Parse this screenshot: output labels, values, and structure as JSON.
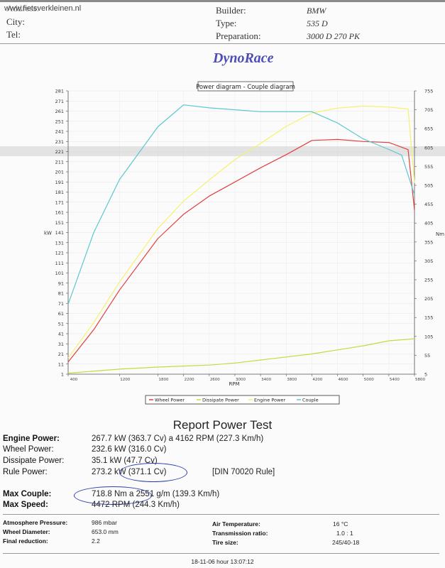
{
  "header": {
    "website": "www.fietsverkleinen.nl",
    "address_label": "Address:",
    "city_label": "City:",
    "tel_label": "Tel:",
    "builder_label": "Builder:",
    "builder_value": "BMW",
    "type_label": "Type:",
    "type_value": "535 D",
    "prep_label": "Preparation:",
    "prep_value": "3000 D 270 PK"
  },
  "brand_title": "DynoRace",
  "chart_data": {
    "type": "line",
    "title": "Power diagram - Couple diagram",
    "xlabel": "RPM",
    "ylabel_left": "kW",
    "ylabel_right": "Nm",
    "x_ticks": [
      "400",
      "1200",
      "1800",
      "2200",
      "2600",
      "3000",
      "3400",
      "3800",
      "4200",
      "4600",
      "5000",
      "5400",
      "5800"
    ],
    "y_left_ticks": [
      1,
      11,
      21,
      31,
      41,
      51,
      61,
      71,
      81,
      91,
      101,
      111,
      121,
      131,
      141,
      151,
      161,
      171,
      181,
      191,
      201,
      211,
      221,
      231,
      241,
      251,
      261,
      271,
      281
    ],
    "y_right_ticks": [
      5,
      55,
      105,
      155,
      205,
      255,
      305,
      355,
      405,
      455,
      505,
      555,
      605,
      655,
      705,
      755
    ],
    "ylim_left": [
      1,
      281
    ],
    "ylim_right": [
      5,
      755
    ],
    "legend": [
      "Wheel Power",
      "Dissipate Power",
      "Engine Power",
      "Couple"
    ],
    "legend_colors": [
      "#e04040",
      "#c8d840",
      "#f6f26a",
      "#5cc8d0"
    ],
    "series": [
      {
        "name": "Wheel Power",
        "axis": "left",
        "color": "#e04040",
        "x": [
          400,
          800,
          1200,
          1800,
          2200,
          2600,
          3000,
          3400,
          3800,
          4200,
          4600,
          5000,
          5400,
          5700,
          5800
        ],
        "y": [
          13,
          45,
          84,
          135,
          159,
          177,
          191,
          205,
          218,
          232,
          233,
          231,
          230,
          223,
          163
        ]
      },
      {
        "name": "Dissipate Power",
        "axis": "left",
        "color": "#c8d840",
        "x": [
          400,
          1200,
          1800,
          2200,
          2600,
          3000,
          3400,
          3800,
          4200,
          4600,
          5000,
          5400,
          5800
        ],
        "y": [
          2,
          6,
          8,
          9,
          10,
          12,
          15,
          18,
          21,
          25,
          29,
          34,
          36
        ]
      },
      {
        "name": "Engine Power",
        "axis": "left",
        "color": "#f6f26a",
        "x": [
          400,
          800,
          1200,
          1800,
          2200,
          2600,
          3000,
          3400,
          3800,
          4200,
          4600,
          5000,
          5400,
          5700,
          5800
        ],
        "y": [
          17,
          52,
          92,
          145,
          172,
          193,
          213,
          229,
          246,
          259,
          264,
          266,
          265,
          263,
          190
        ]
      },
      {
        "name": "Couple",
        "axis": "right",
        "color": "#5cc8d0",
        "x": [
          400,
          800,
          1200,
          1800,
          2200,
          2600,
          3000,
          3400,
          3800,
          4200,
          4600,
          5000,
          5400,
          5600,
          5800
        ],
        "y": [
          190,
          380,
          520,
          660,
          718,
          710,
          705,
          700,
          700,
          700,
          670,
          628,
          600,
          585,
          480
        ]
      }
    ]
  },
  "report": {
    "title": "Report Power Test",
    "engine_power_label": "Engine Power:",
    "engine_power_value": "267.7 kW (363.7 Cv) a 4162 RPM (227.3 Km/h)",
    "wheel_power_label": "Wheel Power:",
    "wheel_power_value": "232.6 kW (316.0 Cv)",
    "dissipate_power_label": "Dissipate Power:",
    "dissipate_power_value": "35.1 kW (47.7 Cv)",
    "rule_power_label": "Rule Power:",
    "rule_power_value": "273.2 kW (371.1 Cv)",
    "rule_note": "[DIN 70020 Rule]",
    "max_couple_label": "Max Couple:",
    "max_couple_value": "718.8 Nm a 2551 g/m (139.3 Km/h)",
    "max_speed_label": "Max Speed:",
    "max_speed_value": "4472 RPM (244.3 Km/h)"
  },
  "conditions": {
    "atm_label": "Atmosphere Pressure:",
    "atm_value": "986 mbar",
    "wheel_diam_label": "Wheel Diameter:",
    "wheel_diam_value": "653.0 mm",
    "final_red_label": "Final reduction:",
    "final_red_value": "2.2",
    "air_temp_label": "Air Temperature:",
    "air_temp_value": "16 °C",
    "trans_label": "Transmission ratio:",
    "trans_value": "1.0 : 1",
    "tire_label": "Tire size:",
    "tire_value": "245/40-18"
  },
  "footer": {
    "timestamp": "18-11-06 hour 13:07:12"
  }
}
